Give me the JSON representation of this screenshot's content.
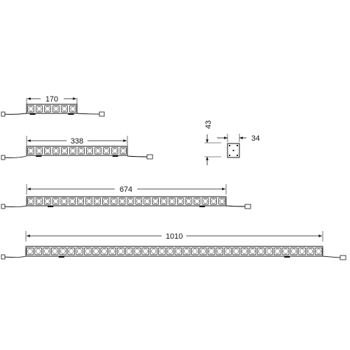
{
  "fixtures": [
    {
      "length_label": "170",
      "led_count": 6
    },
    {
      "length_label": "338",
      "led_count": 12
    },
    {
      "length_label": "674",
      "led_count": 24
    },
    {
      "length_label": "1010",
      "led_count": 36
    }
  ],
  "cross_section": {
    "height_label": "43",
    "width_label": "34"
  }
}
